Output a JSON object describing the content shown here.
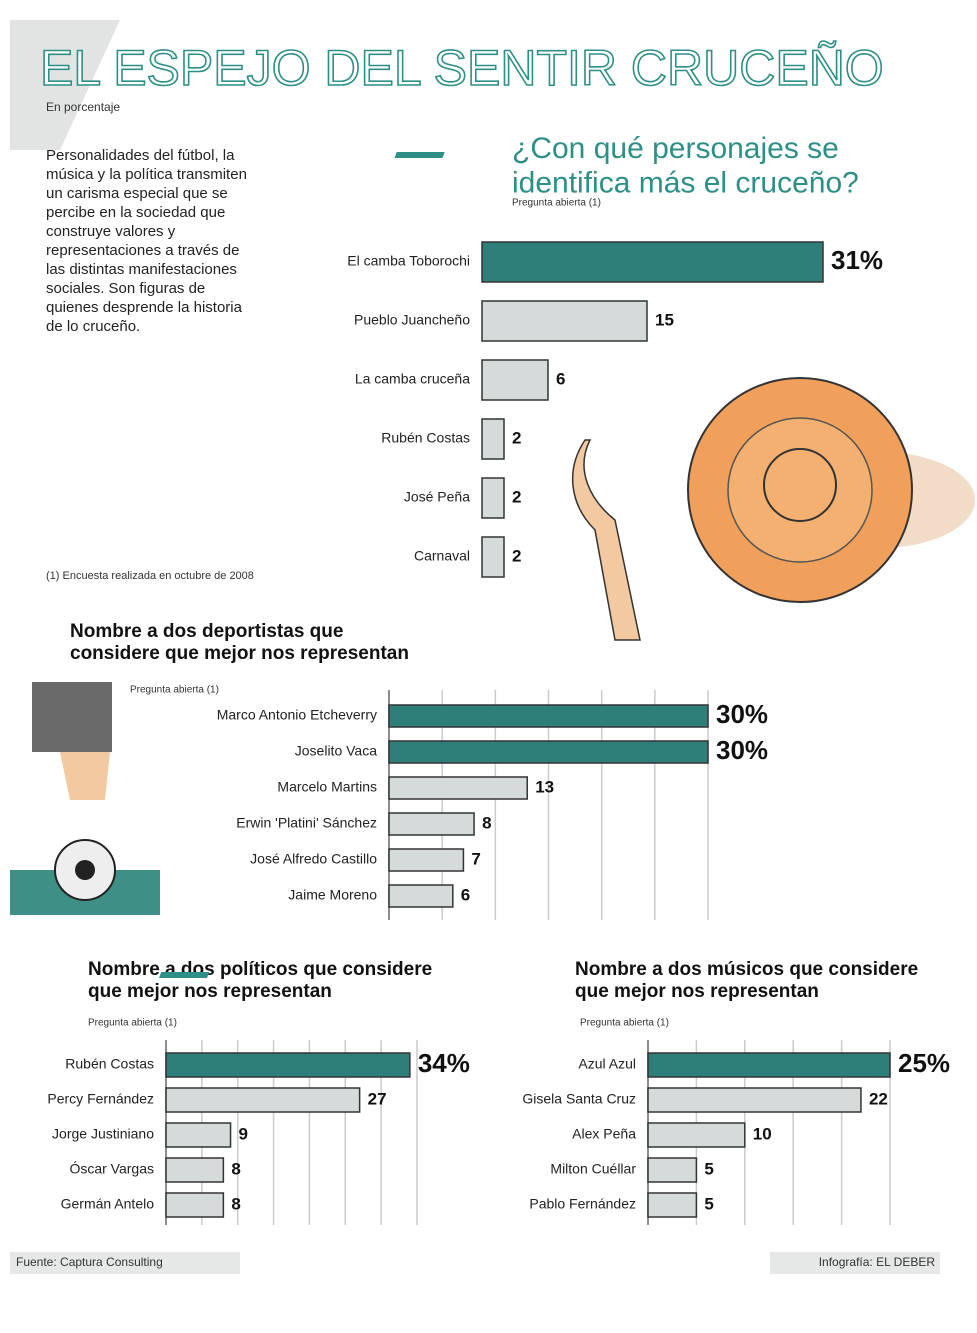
{
  "header": {
    "title": "EL ESPEJO DEL SENTIR CRUCEÑO",
    "subtitle": "En porcentaje",
    "intro": "Personalidades del fútbol, la música y la política transmiten un carisma especial que se percibe en la sociedad que construye valores y representaciones a través de las distintas manifestaciones sociales. Son figuras de quienes desprende la historia de lo cruceño.",
    "note": "(1) Encuesta realizada en octubre de 2008"
  },
  "chart_data": [
    {
      "type": "bar",
      "title": [
        "¿Con qué personajes se",
        "identifica más el cruceño?"
      ],
      "subtitle": "Pregunta abierta (1)",
      "categories": [
        "El camba Toborochi",
        "Pueblo Juancheño",
        "La camba cruceña",
        "Rubén Costas",
        "José Peña",
        "Carnaval"
      ],
      "values": [
        31,
        15,
        6,
        2,
        2,
        2
      ],
      "value_labels": [
        "31%",
        "15",
        "6",
        "2",
        "2",
        "2"
      ],
      "colors": [
        "#2e7f7a",
        "#d5dbdb",
        "#d5dbdb",
        "#d5dbdb",
        "#d5dbdb",
        "#d5dbdb"
      ],
      "xlim": [
        0,
        35
      ],
      "grid": false
    },
    {
      "type": "bar",
      "title": [
        "Nombre a dos deportistas que",
        "considere que mejor nos representan"
      ],
      "subtitle": "Pregunta abierta (1)",
      "categories": [
        "Marco Antonio Etcheverry",
        "Joselito Vaca",
        "Marcelo Martins",
        "Erwin 'Platini' Sánchez",
        "José Alfredo Castillo",
        "Jaime Moreno"
      ],
      "values": [
        30,
        30,
        13,
        8,
        7,
        6
      ],
      "value_labels": [
        "30%",
        "30%",
        "13",
        "8",
        "7",
        "6"
      ],
      "colors": [
        "#2e7f7a",
        "#2e7f7a",
        "#d5dbdb",
        "#d5dbdb",
        "#d5dbdb",
        "#d5dbdb"
      ],
      "xlim": [
        0,
        30
      ],
      "xticks": [
        5,
        10,
        15,
        20,
        25,
        30
      ],
      "grid": true
    },
    {
      "type": "bar",
      "title": [
        "Nombre a dos políticos que considere",
        "que mejor nos representan"
      ],
      "subtitle": "Pregunta abierta (1)",
      "categories": [
        "Rubén Costas",
        "Percy Fernández",
        "Jorge Justiniano",
        "Óscar Vargas",
        "Germán Antelo"
      ],
      "values": [
        34,
        27,
        9,
        8,
        8
      ],
      "value_labels": [
        "34%",
        "27",
        "9",
        "8",
        "8"
      ],
      "colors": [
        "#2e7f7a",
        "#d5dbdb",
        "#d5dbdb",
        "#d5dbdb",
        "#d5dbdb"
      ],
      "xlim": [
        0,
        35
      ],
      "xticks": [
        5,
        10,
        15,
        20,
        25,
        30,
        35
      ],
      "grid": true
    },
    {
      "type": "bar",
      "title": [
        "Nombre a dos músicos que considere",
        "que mejor nos representan"
      ],
      "subtitle": "Pregunta abierta (1)",
      "categories": [
        "Azul Azul",
        "Gisela Santa Cruz",
        "Alex Peña",
        "Milton Cuéllar",
        "Pablo Fernández"
      ],
      "values": [
        25,
        22,
        10,
        5,
        5
      ],
      "value_labels": [
        "25%",
        "22",
        "10",
        "5",
        "5"
      ],
      "colors": [
        "#2e7f7a",
        "#d5dbdb",
        "#d5dbdb",
        "#d5dbdb",
        "#d5dbdb"
      ],
      "xlim": [
        0,
        25
      ],
      "xticks": [
        5,
        10,
        15,
        20,
        25
      ],
      "grid": true
    }
  ],
  "footer": {
    "source": "Fuente: Captura Consulting",
    "credit": "Infografía: EL DEBER"
  }
}
